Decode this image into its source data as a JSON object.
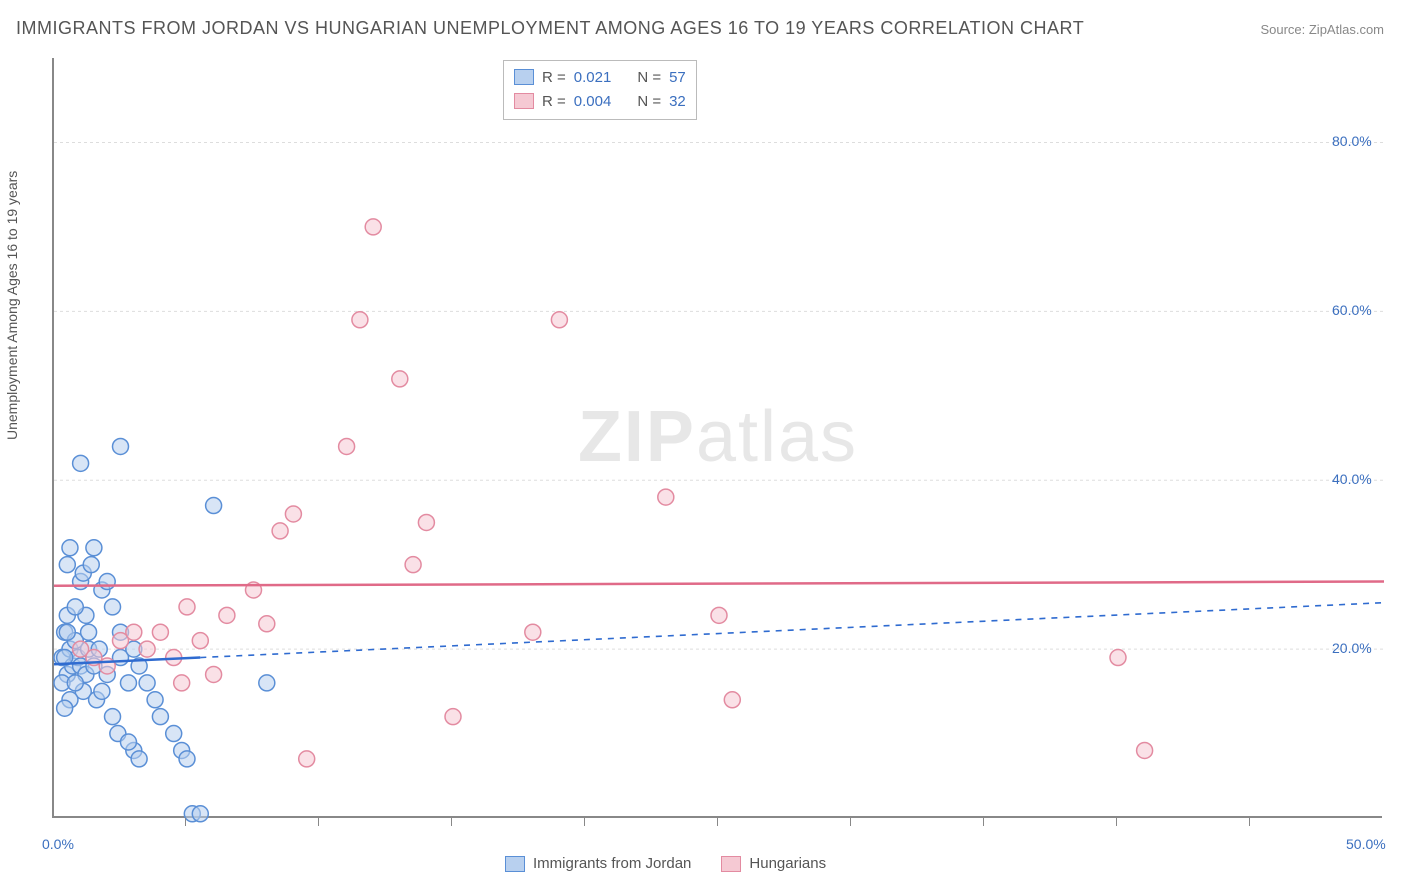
{
  "title": "IMMIGRANTS FROM JORDAN VS HUNGARIAN UNEMPLOYMENT AMONG AGES 16 TO 19 YEARS CORRELATION CHART",
  "source": "Source: ZipAtlas.com",
  "ylabel": "Unemployment Among Ages 16 to 19 years",
  "watermark_a": "ZIP",
  "watermark_b": "atlas",
  "chart": {
    "type": "scatter",
    "xlim": [
      0,
      50
    ],
    "ylim": [
      0,
      90
    ],
    "x_ticks": [
      0,
      50
    ],
    "x_tick_labels": [
      "0.0%",
      "50.0%"
    ],
    "y_ticks_right": [
      20,
      40,
      60,
      80
    ],
    "y_tick_labels": [
      "20.0%",
      "40.0%",
      "60.0%",
      "80.0%"
    ],
    "y_grid": [
      20,
      40,
      60,
      80
    ],
    "x_minor_ticks": [
      5,
      10,
      15,
      20,
      25,
      30,
      35,
      40,
      45
    ],
    "background_color": "#ffffff",
    "grid_color": "#dddddd",
    "axis_color": "#888888",
    "label_color": "#3b6fbf",
    "marker_radius": 8,
    "marker_stroke_width": 1.5,
    "series": [
      {
        "name": "Immigrants from Jordan",
        "fill": "#b8d0ef",
        "stroke": "#5a8fd6",
        "fill_opacity": 0.55,
        "r": 0.021,
        "n": 57,
        "trend": {
          "x1": 0,
          "y1": 18.2,
          "x2": 50,
          "y2": 25.5,
          "solid_until_x": 5.5,
          "color": "#2f6bd0"
        },
        "points": [
          [
            0.3,
            19
          ],
          [
            0.4,
            22
          ],
          [
            0.5,
            17
          ],
          [
            0.6,
            20
          ],
          [
            0.7,
            18
          ],
          [
            0.8,
            21
          ],
          [
            0.5,
            24
          ],
          [
            0.3,
            16
          ],
          [
            0.9,
            19
          ],
          [
            1.0,
            18
          ],
          [
            1.1,
            15
          ],
          [
            1.2,
            17
          ],
          [
            1.3,
            20
          ],
          [
            0.6,
            14
          ],
          [
            0.4,
            13
          ],
          [
            0.8,
            16
          ],
          [
            1.5,
            18
          ],
          [
            1.6,
            14
          ],
          [
            1.8,
            15
          ],
          [
            2.0,
            17
          ],
          [
            2.2,
            12
          ],
          [
            2.4,
            10
          ],
          [
            2.5,
            19
          ],
          [
            2.8,
            16
          ],
          [
            1.0,
            28
          ],
          [
            1.1,
            29
          ],
          [
            1.2,
            24
          ],
          [
            0.5,
            30
          ],
          [
            0.6,
            32
          ],
          [
            1.4,
            30
          ],
          [
            1.5,
            32
          ],
          [
            1.8,
            27
          ],
          [
            2.0,
            28
          ],
          [
            2.2,
            25
          ],
          [
            2.5,
            22
          ],
          [
            3.0,
            20
          ],
          [
            3.2,
            18
          ],
          [
            3.5,
            16
          ],
          [
            3.8,
            14
          ],
          [
            4.0,
            12
          ],
          [
            4.5,
            10
          ],
          [
            4.8,
            8
          ],
          [
            5.0,
            7
          ],
          [
            5.2,
            0.5
          ],
          [
            5.5,
            0.5
          ],
          [
            3.0,
            8
          ],
          [
            3.2,
            7
          ],
          [
            2.8,
            9
          ],
          [
            6.0,
            37
          ],
          [
            2.5,
            44
          ],
          [
            1.0,
            42
          ],
          [
            8.0,
            16
          ],
          [
            0.8,
            25
          ],
          [
            0.5,
            22
          ],
          [
            0.4,
            19
          ],
          [
            1.3,
            22
          ],
          [
            1.7,
            20
          ]
        ]
      },
      {
        "name": "Hungarians",
        "fill": "#f5c9d3",
        "stroke": "#e38ba1",
        "fill_opacity": 0.55,
        "r": 0.004,
        "n": 32,
        "trend": {
          "x1": 0,
          "y1": 27.5,
          "x2": 50,
          "y2": 28.0,
          "solid_until_x": 50,
          "color": "#e06a88"
        },
        "points": [
          [
            1.0,
            20
          ],
          [
            1.5,
            19
          ],
          [
            2.0,
            18
          ],
          [
            2.5,
            21
          ],
          [
            3.0,
            22
          ],
          [
            3.5,
            20
          ],
          [
            4.0,
            22
          ],
          [
            4.5,
            19
          ],
          [
            5.0,
            25
          ],
          [
            5.5,
            21
          ],
          [
            6.0,
            17
          ],
          [
            6.5,
            24
          ],
          [
            7.5,
            27
          ],
          [
            8.0,
            23
          ],
          [
            8.5,
            34
          ],
          [
            9.0,
            36
          ],
          [
            9.5,
            7
          ],
          [
            11.0,
            44
          ],
          [
            11.5,
            59
          ],
          [
            12.0,
            70
          ],
          [
            13.0,
            52
          ],
          [
            13.5,
            30
          ],
          [
            14.0,
            35
          ],
          [
            15.0,
            12
          ],
          [
            18.0,
            22
          ],
          [
            19.0,
            59
          ],
          [
            23.0,
            38
          ],
          [
            25.0,
            24
          ],
          [
            25.5,
            14
          ],
          [
            40.0,
            19
          ],
          [
            41.0,
            8
          ],
          [
            4.8,
            16
          ]
        ]
      }
    ]
  },
  "stat_box": {
    "rows": [
      {
        "swatch_fill": "#b8d0ef",
        "swatch_stroke": "#5a8fd6",
        "r_label": "R =",
        "r_val": "0.021",
        "n_label": "N =",
        "n_val": "57"
      },
      {
        "swatch_fill": "#f5c9d3",
        "swatch_stroke": "#e38ba1",
        "r_label": "R =",
        "r_val": "0.004",
        "n_label": "N =",
        "n_val": "32"
      }
    ]
  },
  "bottom_legend": [
    {
      "swatch_fill": "#b8d0ef",
      "swatch_stroke": "#5a8fd6",
      "label": "Immigrants from Jordan"
    },
    {
      "swatch_fill": "#f5c9d3",
      "swatch_stroke": "#e38ba1",
      "label": "Hungarians"
    }
  ]
}
